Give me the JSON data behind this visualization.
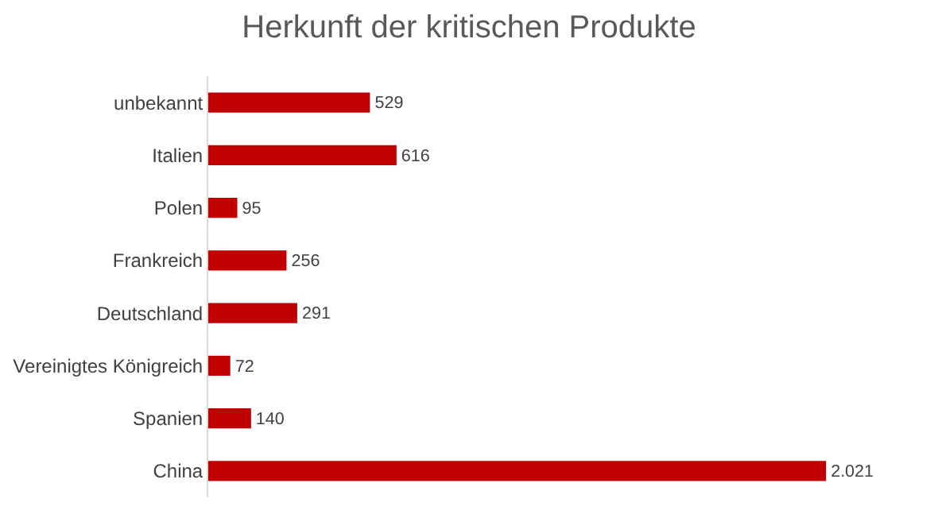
{
  "chart_data": {
    "type": "bar",
    "orientation": "horizontal",
    "title": "Herkunft der kritischen Produkte",
    "categories": [
      "unbekannt",
      "Italien",
      "Polen",
      "Frankreich",
      "Deutschland",
      "Vereinigtes Königreich",
      "Spanien",
      "China"
    ],
    "values": [
      529,
      616,
      95,
      256,
      291,
      72,
      140,
      2021
    ],
    "value_labels": [
      "529",
      "616",
      "95",
      "256",
      "291",
      "72",
      "140",
      "2.021"
    ],
    "color": "#c00000"
  }
}
